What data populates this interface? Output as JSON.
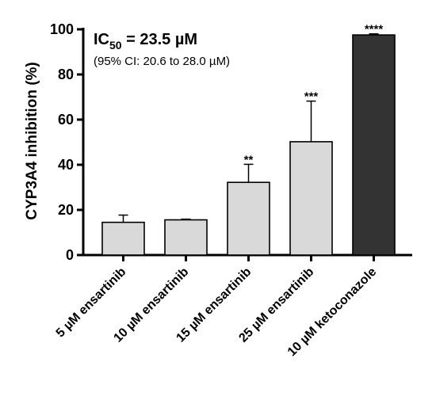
{
  "chart_data": {
    "type": "bar",
    "ylabel": "CYP3A4 inhibition (%)",
    "ylim": [
      0,
      100
    ],
    "yticks": [
      0,
      20,
      40,
      60,
      80,
      100
    ],
    "categories": [
      "5 µM ensartinib",
      "10 µM ensartinib",
      "15 µM ensartinib",
      "25 µM ensartinib",
      "10 µM ketoconazole"
    ],
    "values": [
      14.5,
      15.6,
      32.2,
      50.2,
      97.5
    ],
    "errors": [
      3.2,
      0.3,
      8.0,
      18.0,
      0.5
    ],
    "significance": [
      "",
      "",
      "**",
      "***",
      "****"
    ],
    "bar_colors": [
      "#d9d9d9",
      "#d9d9d9",
      "#d9d9d9",
      "#d9d9d9",
      "#333333"
    ],
    "annotation": {
      "ic50_prefix": "IC",
      "ic50_subscript": "50",
      "ic50_value": " = 23.5 µM",
      "ci": "(95% CI: 20.6 to 28.0 µM)"
    }
  }
}
